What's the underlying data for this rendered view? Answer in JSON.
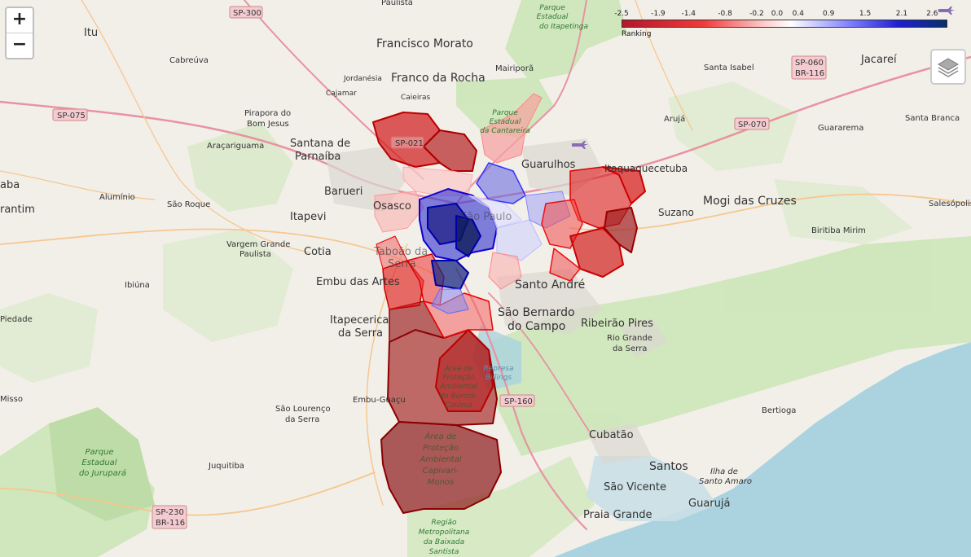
{
  "zoom": {
    "in_label": "+",
    "out_label": "−"
  },
  "legend": {
    "caption": "Ranking",
    "ticks": [
      "-2.5",
      "-1.9",
      "-1.4",
      "-0.8",
      "-0.2",
      "0.0",
      "0.4",
      "0.9",
      "1.5",
      "2.1",
      "2.6"
    ],
    "colors": {
      "low": "#b2182b",
      "mid": "#ffffff",
      "high": "#08306b"
    }
  },
  "places": {
    "itu": "Itu",
    "cabreuva": "Cabreúva",
    "francisco_morato": "Francisco Morato",
    "franco_da_rocha": "Franco da Rocha",
    "mairipora": "Mairiporã",
    "jordanesia": "Jordanésia",
    "cajamar": "Cajamar",
    "caieiras": "Caieiras",
    "pirapora": "Pirapora do",
    "bom_jesus": "Bom Jesus",
    "santana_1": "Santana de",
    "santana_2": "Parnaíba",
    "aracariguama": "Araçariguama",
    "barueri": "Barueri",
    "osasco": "Osasco",
    "itapevi": "Itapevi",
    "sao_paulo": "São Paulo",
    "guarulhos": "Guarulhos",
    "itaquaquecetuba": "Itaquaquecetuba",
    "aruja": "Arujá",
    "santa_isabel": "Santa Isabel",
    "jacarei": "Jacareí",
    "santa_branca": "Santa Branca",
    "guararema": "Guararema",
    "mogi": "Mogi das Cruzes",
    "suzano": "Suzano",
    "salesopolis": "Salesópolis",
    "biritiba": "Biritiba Mirim",
    "aluminio": "Alumínio",
    "sao_roque": "São Roque",
    "vargem_1": "Vargem Grande",
    "vargem_2": "Paulista",
    "cotia": "Cotia",
    "taboao_1": "Taboão da",
    "taboao_2": "Serra",
    "embu": "Embu das Artes",
    "ibiuna": "Ibiúna",
    "piedade": "Piedade",
    "itapecerica_1": "Itapecerica",
    "itapecerica_2": "da Serra",
    "santo_andre": "Santo André",
    "sbc_1": "São Bernardo",
    "sbc_2": "do Campo",
    "ribeirao": "Ribeirão Pires",
    "rio_grande_1": "Rio Grande",
    "rio_grande_2": "da Serra",
    "embu_guacu": "Embu-Guaçu",
    "slourenco_1": "São Lourenço",
    "slourenco_2": "da Serra",
    "juquitiba": "Juquitiba",
    "cubatao": "Cubatão",
    "santos": "Santos",
    "sao_vicente": "São Vicente",
    "praia_grande": "Praia Grande",
    "guaruja": "Guarujá",
    "bertioga": "Bertioga",
    "ilha_1": "Ilha de",
    "ilha_2": "Santo Amaro",
    "aba": "aba",
    "rantim": "rantim",
    "misso": "Misso",
    "paulista_top": "Paulista"
  },
  "parks": {
    "itapetinga": [
      "Parque",
      "Estadual",
      "do Itapetinga"
    ],
    "cantareira": [
      "Parque",
      "Estadual",
      "da Cantareira"
    ],
    "jurupara": [
      "Parque",
      "Estadual",
      "do Jurupará"
    ],
    "bororé": [
      "Área de",
      "Proteção",
      "Ambiental",
      "do Bororé-",
      "Colônia"
    ],
    "capivari": [
      "Área de",
      "Proteção",
      "Ambiental",
      "Capivari-",
      "Monos"
    ],
    "baixada": [
      "Região",
      "Metropolitana",
      "da Baixada",
      "Santista"
    ],
    "represa": [
      "Represa",
      "Billings"
    ]
  },
  "roads": {
    "sp300": "SP-300",
    "sp075": "SP-075",
    "sp021": "SP-021",
    "sp070": "SP-070",
    "sp060": "SP-060",
    "br116_a": "BR-116",
    "sp160": "SP-160",
    "sp230": "SP-230",
    "br116_b": "BR-116"
  }
}
